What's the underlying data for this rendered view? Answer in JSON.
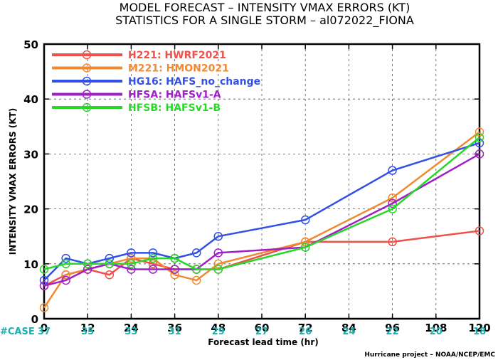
{
  "title_line1": "MODEL FORECAST – INTENSITY VMAX ERRORS (KT)",
  "title_line2": "STATISTICS FOR A SINGLE STORM – al072022_FIONA",
  "credit": "Hurricane project – NOAA/NCEP/EMC",
  "case_label": "#CASE",
  "case_color": "#1ab0b0",
  "chart_data": {
    "type": "line",
    "xlabel": "Forecast lead time (hr)",
    "ylabel": "INTENSITY VMAX ERRORS (KT)",
    "xlim": [
      0,
      120
    ],
    "ylim": [
      0,
      50
    ],
    "xticks": [
      0,
      12,
      24,
      36,
      48,
      60,
      72,
      84,
      96,
      108,
      120
    ],
    "yticks": [
      0,
      10,
      20,
      30,
      40,
      50
    ],
    "grid": true,
    "legend_position": "top-left",
    "cases": {
      "x": [
        0,
        12,
        24,
        36,
        48,
        60,
        72,
        84,
        96,
        108,
        120
      ],
      "values": [
        37,
        35,
        33,
        31,
        29,
        27,
        26,
        24,
        22,
        20,
        18
      ]
    },
    "series": [
      {
        "name": "H221: HWRF2021",
        "color": "#f0504a",
        "x": [
          0,
          6,
          12,
          18,
          24,
          30,
          36,
          42,
          48,
          72,
          96,
          120
        ],
        "y": [
          6,
          8,
          9,
          8,
          11,
          10,
          9,
          9,
          9,
          14,
          14,
          16
        ]
      },
      {
        "name": "M221: HMON2021",
        "color": "#f08a30",
        "x": [
          0,
          6,
          12,
          18,
          24,
          30,
          36,
          42,
          48,
          72,
          96,
          120
        ],
        "y": [
          2,
          8,
          9,
          10,
          11,
          11,
          8,
          7,
          10,
          14,
          22,
          34
        ]
      },
      {
        "name": "HG16: HAFS_no_change",
        "color": "#3250e8",
        "x": [
          0,
          6,
          12,
          18,
          24,
          30,
          36,
          42,
          48,
          72,
          96,
          120
        ],
        "y": [
          7,
          11,
          10,
          11,
          12,
          12,
          11,
          12,
          15,
          18,
          27,
          32
        ]
      },
      {
        "name": "HFSA: HAFSv1-A",
        "color": "#a020c8",
        "x": [
          0,
          6,
          12,
          18,
          24,
          30,
          36,
          42,
          48,
          72,
          96,
          120
        ],
        "y": [
          6,
          7,
          9,
          10,
          9,
          9,
          9,
          9,
          12,
          13,
          21,
          30
        ]
      },
      {
        "name": "HFSB: HAFSv1-B",
        "color": "#28d828",
        "x": [
          0,
          6,
          12,
          18,
          24,
          30,
          36,
          42,
          48,
          72,
          96,
          120
        ],
        "y": [
          9,
          10,
          10,
          10,
          10,
          11,
          11,
          9,
          9,
          13,
          20,
          33
        ]
      }
    ]
  }
}
